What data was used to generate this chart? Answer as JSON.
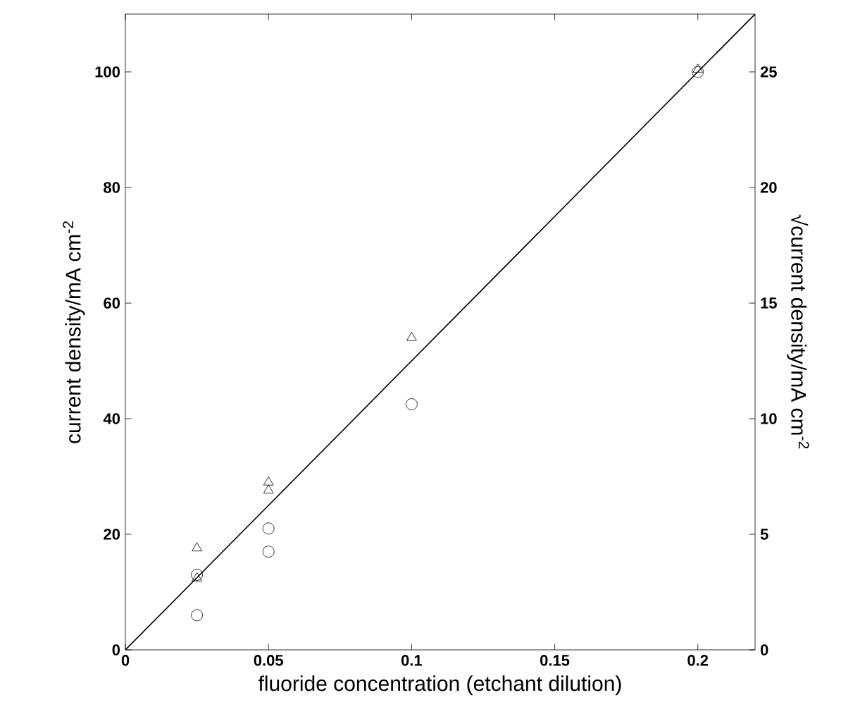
{
  "chart_data": {
    "type": "scatter",
    "xlabel": "fluoride concentration (etchant dilution)",
    "ylabel": "current density/mA cm$^{-2}$",
    "y2label": "√current density/mA cm$^{-2}$",
    "xlim": [
      0,
      0.22
    ],
    "xticks": [
      0,
      0.05,
      0.1,
      0.15,
      0.2
    ],
    "ylim": [
      0,
      110
    ],
    "yticks": [
      0,
      20,
      40,
      60,
      80,
      100
    ],
    "y2lim": [
      0,
      27.5
    ],
    "y2ticks": [
      0,
      5,
      10,
      15,
      20,
      25
    ],
    "series": [
      {
        "marker": "circle",
        "color": "#000000",
        "x": [
          0.025,
          0.025,
          0.05,
          0.05,
          0.1,
          0.2
        ],
        "values": [
          6,
          13,
          17,
          21,
          42.5,
          100
        ]
      },
      {
        "marker": "triangle",
        "axis": "y2",
        "color": "#000000",
        "x": [
          0.025,
          0.025,
          0.05,
          0.05,
          0.1,
          0.2
        ],
        "values": [
          3.1,
          4.4,
          6.9,
          7.25,
          13.5,
          25.1
        ]
      },
      {
        "type": "line",
        "marker": "none",
        "color": "#000000",
        "x": [
          0,
          0.22
        ],
        "values": [
          0,
          110
        ]
      }
    ]
  }
}
